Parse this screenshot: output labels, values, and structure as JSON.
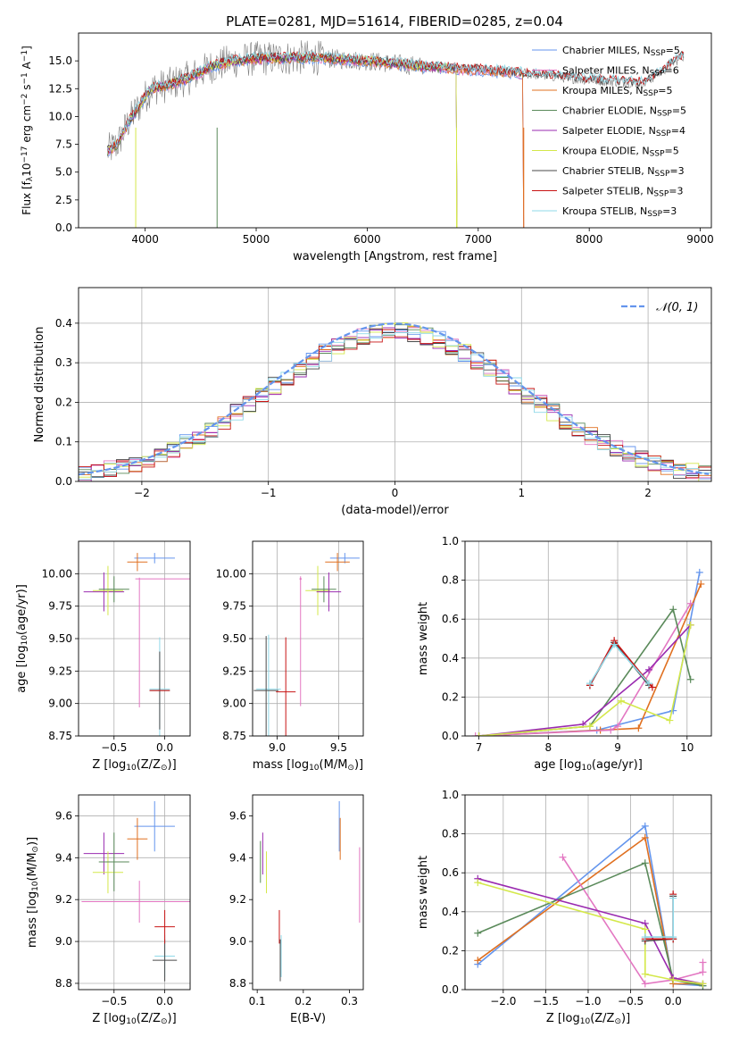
{
  "figure": {
    "title": "PLATE=0281, MJD=51614, FIBERID=0285, z=0.04",
    "colors": {
      "Chabrier MILES": "#6495ed",
      "Salpeter MILES": "#e377c2",
      "Kroupa MILES": "#e07020",
      "Chabrier ELODIE": "#5a8a5a",
      "Salpeter ELODIE": "#9a2bb0",
      "Kroupa ELODIE": "#d4e84a",
      "Chabrier STELIB": "#4a4a4a",
      "Salpeter STELIB": "#c81414",
      "Kroupa STELIB": "#8fd9e8",
      "observed": "#808080"
    }
  },
  "chart_data": [
    {
      "id": "spectrum",
      "type": "line",
      "xlabel": "wavelength [Angstrom, rest frame]",
      "ylabel": "Flux [f",
      "ylabel_sub": "λ",
      "ylabel_rest": "10",
      "ylabel_exp1": "−17",
      "ylabel_mid": " erg cm",
      "ylabel_exp2": "−2",
      "ylabel_mid2": " s",
      "ylabel_exp3": "−1",
      "ylabel_mid3": " A",
      "ylabel_exp4": "−1",
      "ylabel_end": "]",
      "xlim": [
        3400,
        9100
      ],
      "ylim": [
        0,
        17.5
      ],
      "xticks": [
        "4000",
        "5000",
        "6000",
        "7000",
        "8000",
        "9000"
      ],
      "yticks": [
        "0.0",
        "2.5",
        "5.0",
        "7.5",
        "10.0",
        "12.5",
        "15.0"
      ],
      "legend": [
        {
          "name": "Chabrier MILES",
          "nssp": "5"
        },
        {
          "name": "Salpeter MILES",
          "nssp": "6"
        },
        {
          "name": "Kroupa MILES",
          "nssp": "5"
        },
        {
          "name": "Chabrier ELODIE",
          "nssp": "5"
        },
        {
          "name": "Salpeter ELODIE",
          "nssp": "4"
        },
        {
          "name": "Kroupa ELODIE",
          "nssp": "5"
        },
        {
          "name": "Chabrier STELIB",
          "nssp": "3"
        },
        {
          "name": "Salpeter STELIB",
          "nssp": "3"
        },
        {
          "name": "Kroupa STELIB",
          "nssp": "3"
        }
      ],
      "legend_sub": "SSP",
      "legend_prefix": "N",
      "continuum": [
        [
          3650,
          6.8
        ],
        [
          3750,
          7.5
        ],
        [
          3850,
          9.5
        ],
        [
          3950,
          11.0
        ],
        [
          4050,
          12.5
        ],
        [
          4200,
          12.8
        ],
        [
          4400,
          13.5
        ],
        [
          4600,
          14.5
        ],
        [
          4800,
          15.0
        ],
        [
          5000,
          15.2
        ],
        [
          5500,
          15.3
        ],
        [
          6000,
          15.0
        ],
        [
          6500,
          14.5
        ],
        [
          7000,
          14.2
        ],
        [
          7500,
          13.8
        ],
        [
          8000,
          13.3
        ],
        [
          8500,
          13.0
        ],
        [
          8850,
          15.5
        ]
      ],
      "models_end": {
        "MILES": 7400,
        "ELODIE": 6800,
        "STELIB": 8850
      }
    },
    {
      "id": "residuals",
      "type": "line",
      "xlabel": "(data-model)/error",
      "ylabel": "Normed distribution",
      "xlim": [
        -2.5,
        2.5
      ],
      "ylim": [
        0,
        0.49
      ],
      "xticks": [
        "−2",
        "−1",
        "0",
        "1",
        "2"
      ],
      "yticks": [
        "0.0",
        "0.1",
        "0.2",
        "0.3",
        "0.4"
      ],
      "legend": "𝒩(0, 1)",
      "legend_color": "#6495ed",
      "grid": true
    },
    {
      "id": "age_vs_Z",
      "type": "scatter",
      "xlabel": "Z [log",
      "xlabel_sub": "10",
      "xlabel_end": "(Z/Z",
      "xlabel_sun": "⊙",
      "xlabel_close": ")]",
      "ylabel": "age  [log",
      "ylabel_sub": "10",
      "ylabel_end": "(age/yr)]",
      "xlim": [
        -0.85,
        0.25
      ],
      "ylim": [
        8.75,
        10.25
      ],
      "xticks": [
        "−0.5",
        "0.0"
      ],
      "yticks": [
        "8.75",
        "9.00",
        "9.25",
        "9.50",
        "9.75",
        "10.00"
      ],
      "grid": true,
      "points": [
        {
          "model": "Chabrier MILES",
          "x": -0.1,
          "xerr": 0.2,
          "y": 10.12,
          "yerr": 0.04
        },
        {
          "model": "Kroupa MILES",
          "x": -0.27,
          "xerr": 0.1,
          "y": 10.09,
          "yerr": 0.07
        },
        {
          "model": "Salpeter MILES",
          "x": -0.02,
          "xerr": 0.27,
          "y": 9.96,
          "yerr": 0.0
        },
        {
          "model": "Salpeter ELODIE",
          "x": -0.6,
          "xerr": 0.2,
          "y": 9.86,
          "yerr": 0.15
        },
        {
          "model": "Kroupa ELODIE",
          "x": -0.56,
          "xerr": 0.15,
          "y": 9.87,
          "yerr": 0.19
        },
        {
          "model": "Chabrier ELODIE",
          "x": -0.5,
          "xerr": 0.15,
          "y": 9.88,
          "yerr": 0.1
        },
        {
          "model": "Salpeter MILES",
          "x": -0.25,
          "xerr": 0.0,
          "y": 9.47,
          "yerr": 0.5
        },
        {
          "model": "Kroupa STELIB",
          "x": -0.05,
          "xerr": 0.1,
          "y": 9.11,
          "yerr": 0.4
        },
        {
          "model": "Chabrier STELIB",
          "x": -0.05,
          "xerr": 0.1,
          "y": 9.1,
          "yerr": 0.3
        },
        {
          "model": "Salpeter STELIB",
          "x": -0.05,
          "xerr": 0.1,
          "y": 9.1,
          "yerr": 0.0
        }
      ]
    },
    {
      "id": "age_vs_mass",
      "type": "scatter",
      "xlabel": "mass [log",
      "xlabel_sub": "10",
      "xlabel_end": "(M/M",
      "xlabel_sun": "⊙",
      "xlabel_close": ")]",
      "xlim": [
        8.8,
        9.7
      ],
      "ylim": [
        8.75,
        10.25
      ],
      "xticks": [
        "9.0",
        "9.5"
      ],
      "yticks": [
        "8.75",
        "9.00",
        "9.25",
        "9.50",
        "9.75",
        "10.00"
      ],
      "grid": true,
      "points": [
        {
          "model": "Chabrier MILES",
          "x": 9.55,
          "xerr": 0.12,
          "y": 10.12,
          "yerr": 0.04
        },
        {
          "model": "Kroupa MILES",
          "x": 9.49,
          "xerr": 0.1,
          "y": 10.09,
          "yerr": 0.07
        },
        {
          "model": "Salpeter MILES",
          "x": 9.19,
          "xerr": 0.0,
          "y": 9.48,
          "yerr": 0.5
        },
        {
          "model": "Salpeter MILES",
          "x": 9.19,
          "xerr": 0.0,
          "y": 9.96,
          "yerr": 0.0
        },
        {
          "model": "Kroupa ELODIE",
          "x": 9.33,
          "xerr": 0.1,
          "y": 9.87,
          "yerr": 0.19
        },
        {
          "model": "Chabrier ELODIE",
          "x": 9.38,
          "xerr": 0.1,
          "y": 9.88,
          "yerr": 0.1
        },
        {
          "model": "Salpeter ELODIE",
          "x": 9.42,
          "xerr": 0.1,
          "y": 9.86,
          "yerr": 0.15
        },
        {
          "model": "Kroupa STELIB",
          "x": 8.93,
          "xerr": 0.1,
          "y": 9.11,
          "yerr": 0.42
        },
        {
          "model": "Chabrier STELIB",
          "x": 8.91,
          "xerr": 0.1,
          "y": 9.1,
          "yerr": 0.42
        },
        {
          "model": "Salpeter STELIB",
          "x": 9.07,
          "xerr": 0.08,
          "y": 9.09,
          "yerr": 0.42
        }
      ]
    },
    {
      "id": "weight_vs_age",
      "type": "line",
      "xlabel": "age  [log",
      "xlabel_sub": "10",
      "xlabel_end": "(age/yr)]",
      "ylabel": "mass weight",
      "xlim": [
        6.8,
        10.35
      ],
      "ylim": [
        0,
        1.0
      ],
      "xticks": [
        "7",
        "8",
        "9",
        "10"
      ],
      "yticks": [
        "0.0",
        "0.2",
        "0.4",
        "0.6",
        "0.8",
        "1.0"
      ],
      "grid": true,
      "series": [
        {
          "model": "Chabrier MILES",
          "x": [
            7.0,
            8.7,
            9.8,
            10.18
          ],
          "y": [
            0.0,
            0.03,
            0.13,
            0.84
          ]
        },
        {
          "model": "Kroupa MILES",
          "x": [
            7.0,
            8.75,
            9.3,
            10.2
          ],
          "y": [
            0.0,
            0.03,
            0.04,
            0.78
          ]
        },
        {
          "model": "Salpeter MILES",
          "x": [
            6.95,
            8.9,
            9.0,
            10.05
          ],
          "y": [
            0.0,
            0.03,
            0.05,
            0.68
          ]
        },
        {
          "model": "Chabrier ELODIE",
          "x": [
            7.0,
            8.6,
            9.8,
            10.05
          ],
          "y": [
            0.0,
            0.05,
            0.65,
            0.29
          ]
        },
        {
          "model": "Salpeter ELODIE",
          "x": [
            7.0,
            8.5,
            9.45,
            10.05
          ],
          "y": [
            0.0,
            0.06,
            0.34,
            0.57
          ]
        },
        {
          "model": "Kroupa ELODIE",
          "x": [
            7.0,
            8.6,
            9.05,
            9.75,
            10.05
          ],
          "y": [
            0.0,
            0.05,
            0.18,
            0.08,
            0.57
          ]
        },
        {
          "model": "Chabrier STELIB",
          "x": [
            8.6,
            8.95,
            9.45
          ],
          "y": [
            0.26,
            0.48,
            0.26
          ]
        },
        {
          "model": "Salpeter STELIB",
          "x": [
            8.6,
            8.95,
            9.5
          ],
          "y": [
            0.26,
            0.49,
            0.25
          ]
        },
        {
          "model": "Kroupa STELIB",
          "x": [
            8.6,
            8.95,
            9.45
          ],
          "y": [
            0.27,
            0.47,
            0.27
          ]
        }
      ]
    },
    {
      "id": "mass_vs_Z",
      "type": "scatter",
      "xlabel": "Z [log",
      "xlabel_sub": "10",
      "xlabel_end": "(Z/Z",
      "xlabel_sun": "⊙",
      "xlabel_close": ")]",
      "ylabel": "mass [log",
      "ylabel_sub": "10",
      "ylabel_end": "(M/M",
      "ylabel_sun": "⊙",
      "ylabel_close": ")]",
      "xlim": [
        -0.85,
        0.25
      ],
      "ylim": [
        8.77,
        9.7
      ],
      "xticks": [
        "−0.5",
        "0.0"
      ],
      "yticks": [
        "8.8",
        "9.0",
        "9.2",
        "9.4",
        "9.6"
      ],
      "grid": true,
      "points": [
        {
          "model": "Chabrier MILES",
          "x": -0.1,
          "xerr": 0.2,
          "y": 9.55,
          "yerr": 0.12
        },
        {
          "model": "Kroupa MILES",
          "x": -0.27,
          "xerr": 0.1,
          "y": 9.49,
          "yerr": 0.1
        },
        {
          "model": "Salpeter MILES",
          "x": -0.25,
          "xerr": 0.0,
          "y": 9.19,
          "yerr": 0.1
        },
        {
          "model": "Salpeter MILES",
          "x": -0.27,
          "xerr": 0.55,
          "y": 9.19,
          "yerr": 0.0
        },
        {
          "model": "Salpeter ELODIE",
          "x": -0.6,
          "xerr": 0.2,
          "y": 9.42,
          "yerr": 0.1
        },
        {
          "model": "Kroupa ELODIE",
          "x": -0.56,
          "xerr": 0.15,
          "y": 9.33,
          "yerr": 0.1
        },
        {
          "model": "Chabrier ELODIE",
          "x": -0.5,
          "xerr": 0.15,
          "y": 9.38,
          "yerr": 0.14
        },
        {
          "model": "Kroupa STELIB",
          "x": 0.0,
          "xerr": 0.1,
          "y": 8.93,
          "yerr": 0.1
        },
        {
          "model": "Chabrier STELIB",
          "x": 0.0,
          "xerr": 0.12,
          "y": 8.91,
          "yerr": 0.1
        },
        {
          "model": "Salpeter STELIB",
          "x": 0.0,
          "xerr": 0.1,
          "y": 9.07,
          "yerr": 0.08
        }
      ]
    },
    {
      "id": "mass_vs_EBV",
      "type": "scatter",
      "xlabel": "E(B-V)",
      "xlim": [
        0.09,
        0.33
      ],
      "ylim": [
        8.77,
        9.7
      ],
      "xticks": [
        "0.1",
        "0.2",
        "0.3"
      ],
      "yticks": [
        "8.8",
        "9.0",
        "9.2",
        "9.4",
        "9.6"
      ],
      "grid": false,
      "points": [
        {
          "model": "Chabrier MILES",
          "x": 0.278,
          "y": 9.55,
          "yerr": 0.12
        },
        {
          "model": "Kroupa MILES",
          "x": 0.28,
          "y": 9.49,
          "yerr": 0.1
        },
        {
          "model": "Salpeter MILES",
          "x": 0.322,
          "y": 9.27,
          "yerr": 0.18
        },
        {
          "model": "Chabrier ELODIE",
          "x": 0.107,
          "y": 9.38,
          "yerr": 0.1
        },
        {
          "model": "Salpeter ELODIE",
          "x": 0.112,
          "y": 9.42,
          "yerr": 0.1
        },
        {
          "model": "Kroupa ELODIE",
          "x": 0.12,
          "y": 9.33,
          "yerr": 0.1
        },
        {
          "model": "Kroupa STELIB",
          "x": 0.152,
          "y": 8.93,
          "yerr": 0.1
        },
        {
          "model": "Chabrier STELIB",
          "x": 0.15,
          "y": 8.91,
          "yerr": 0.1
        },
        {
          "model": "Salpeter STELIB",
          "x": 0.148,
          "y": 9.07,
          "yerr": 0.08
        }
      ]
    },
    {
      "id": "weight_vs_Z",
      "type": "line",
      "xlabel": "Z [log",
      "xlabel_sub": "10",
      "xlabel_end": "(Z/Z",
      "xlabel_sun": "⊙",
      "xlabel_close": ")]",
      "ylabel": "mass weight",
      "xlim": [
        -2.45,
        0.45
      ],
      "ylim": [
        0,
        1.0
      ],
      "xticks": [
        "−2.0",
        "−1.5",
        "−1.0",
        "−0.5",
        "0.0"
      ],
      "yticks": [
        "0.0",
        "0.2",
        "0.4",
        "0.6",
        "0.8",
        "1.0"
      ],
      "grid": true,
      "series": [
        {
          "model": "Chabrier MILES",
          "x": [
            -2.3,
            -0.33,
            0.0,
            0.35
          ],
          "y": [
            0.13,
            0.84,
            0.03,
            0.02
          ]
        },
        {
          "model": "Kroupa MILES",
          "x": [
            -2.3,
            -0.33,
            0.0,
            0.35
          ],
          "y": [
            0.15,
            0.78,
            0.03,
            0.03
          ]
        },
        {
          "model": "Salpeter MILES",
          "x": [
            -1.3,
            -0.33,
            0.0,
            0.35,
            0.35
          ],
          "y": [
            0.68,
            0.03,
            0.05,
            0.09,
            0.14
          ]
        },
        {
          "model": "Chabrier ELODIE",
          "x": [
            -2.3,
            -0.33,
            0.0,
            0.35
          ],
          "y": [
            0.29,
            0.65,
            0.05,
            0.02
          ]
        },
        {
          "model": "Salpeter ELODIE",
          "x": [
            -2.3,
            -0.33,
            0.0,
            0.35
          ],
          "y": [
            0.57,
            0.34,
            0.06,
            0.03
          ]
        },
        {
          "model": "Kroupa ELODIE",
          "x": [
            -2.3,
            -0.33,
            -0.33,
            0.0,
            0.35
          ],
          "y": [
            0.55,
            0.31,
            0.08,
            0.05,
            0.03
          ]
        },
        {
          "model": "Chabrier STELIB",
          "x": [
            -0.33,
            0.0,
            0.0
          ],
          "y": [
            0.25,
            0.26,
            0.48
          ]
        },
        {
          "model": "Salpeter STELIB",
          "x": [
            -0.33,
            0.0,
            0.0
          ],
          "y": [
            0.26,
            0.26,
            0.49
          ]
        },
        {
          "model": "Kroupa STELIB",
          "x": [
            -0.33,
            0.0,
            0.0
          ],
          "y": [
            0.27,
            0.27,
            0.47
          ]
        }
      ]
    }
  ]
}
